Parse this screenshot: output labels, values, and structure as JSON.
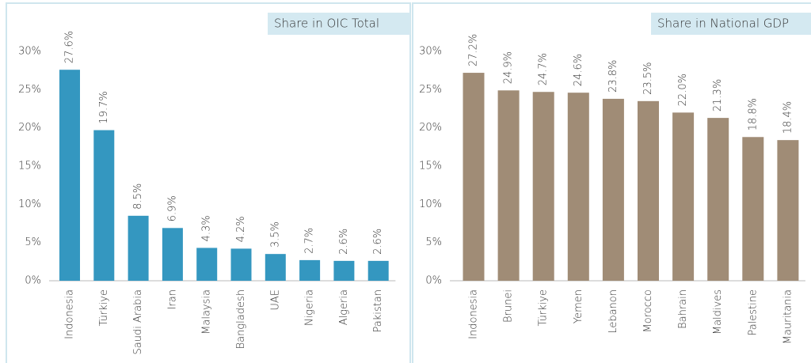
{
  "chart_data": [
    {
      "type": "bar",
      "title": "Share in OIC Total",
      "categories": [
        "Indonesia",
        "Türkiye",
        "Saudi Arabia",
        "Iran",
        "Malaysia",
        "Bangladesh",
        "UAE",
        "Nigeria",
        "Algeria",
        "Pakistan"
      ],
      "values": [
        27.6,
        19.7,
        8.5,
        6.9,
        4.3,
        4.2,
        3.5,
        2.7,
        2.6,
        2.6
      ],
      "value_labels": [
        "27.6%",
        "19.7%",
        "8.5%",
        "6.9%",
        "4.3%",
        "4.2%",
        "3.5%",
        "2.7%",
        "2.6%",
        "2.6%"
      ],
      "color": "#3497c0",
      "ylim": [
        0,
        30
      ],
      "yticks": [
        {
          "value": 0,
          "label": "0%"
        },
        {
          "value": 5,
          "label": "5%"
        },
        {
          "value": 10,
          "label": "10%"
        },
        {
          "value": 15,
          "label": "15%"
        },
        {
          "value": 20,
          "label": "20%"
        },
        {
          "value": 25,
          "label": "25%"
        },
        {
          "value": 30,
          "label": "30%"
        }
      ]
    },
    {
      "type": "bar",
      "title": "Share in National GDP",
      "categories": [
        "Indonesia",
        "Brunei",
        "Türkiye",
        "Yemen",
        "Lebanon",
        "Morocco",
        "Bahrain",
        "Maldives",
        "Palestine",
        "Mauritania"
      ],
      "values": [
        27.2,
        24.9,
        24.7,
        24.6,
        23.8,
        23.5,
        22.0,
        21.3,
        18.8,
        18.4
      ],
      "value_labels": [
        "27.2%",
        "24.9%",
        "24.7%",
        "24.6%",
        "23.8%",
        "23.5%",
        "22.0%",
        "21.3%",
        "18.8%",
        "18.4%"
      ],
      "color": "#a08c76",
      "ylim": [
        0,
        30
      ],
      "yticks": [
        {
          "value": 0,
          "label": "0%"
        },
        {
          "value": 5,
          "label": "5%"
        },
        {
          "value": 10,
          "label": "10%"
        },
        {
          "value": 15,
          "label": "15%"
        },
        {
          "value": 20,
          "label": "20%"
        },
        {
          "value": 25,
          "label": "25%"
        },
        {
          "value": 30,
          "label": "30%"
        }
      ]
    }
  ]
}
